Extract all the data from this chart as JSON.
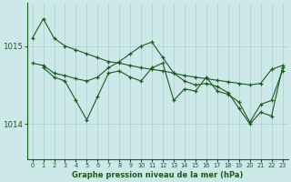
{
  "background_color": "#cce8e8",
  "grid_color": "#aacfcf",
  "line_color": "#1a5c1a",
  "marker_color": "#1a5c1a",
  "title": "Graphe pression niveau de la mer (hPa)",
  "xlim": [
    -0.5,
    23.5
  ],
  "ylim": [
    1013.55,
    1015.55
  ],
  "yticks": [
    1014,
    1015
  ],
  "xticks": [
    0,
    1,
    2,
    3,
    4,
    5,
    6,
    7,
    8,
    9,
    10,
    11,
    12,
    13,
    14,
    15,
    16,
    17,
    18,
    19,
    20,
    21,
    22,
    23
  ],
  "series": [
    {
      "x": [
        0,
        1,
        2,
        3,
        4,
        5,
        6,
        7,
        8,
        9,
        10,
        11,
        12,
        13,
        14,
        15,
        16,
        17,
        18,
        19,
        20,
        21,
        22,
        23
      ],
      "y": [
        1015.1,
        1015.35,
        1015.1,
        1015.0,
        1014.95,
        1014.9,
        1014.85,
        1014.8,
        1014.78,
        1014.75,
        1014.72,
        1014.7,
        1014.68,
        1014.65,
        1014.62,
        1014.6,
        1014.58,
        1014.56,
        1014.54,
        1014.52,
        1014.5,
        1014.52,
        1014.7,
        1014.75
      ]
    },
    {
      "x": [
        0,
        1,
        2,
        3,
        4,
        5,
        6,
        7,
        8,
        9,
        10,
        11,
        12,
        13,
        14,
        15,
        16,
        17,
        18,
        19,
        20,
        21,
        22,
        23
      ],
      "y": [
        1014.78,
        1014.75,
        1014.65,
        1014.62,
        1014.58,
        1014.55,
        1014.6,
        1014.72,
        1014.8,
        1014.9,
        1015.0,
        1015.05,
        1014.85,
        1014.65,
        1014.55,
        1014.5,
        1014.52,
        1014.48,
        1014.4,
        1014.2,
        1014.0,
        1014.15,
        1014.1,
        1014.72
      ]
    },
    {
      "x": [
        1,
        2,
        3,
        4,
        5,
        6,
        7,
        8,
        9,
        10,
        11,
        12,
        13,
        14,
        15,
        16,
        17,
        18,
        19,
        20,
        21,
        22,
        23
      ],
      "y": [
        1014.72,
        1014.6,
        1014.55,
        1014.3,
        1014.05,
        1014.35,
        1014.65,
        1014.68,
        1014.6,
        1014.55,
        1014.72,
        1014.78,
        1014.3,
        1014.45,
        1014.42,
        1014.6,
        1014.42,
        1014.38,
        1014.28,
        1014.02,
        1014.25,
        1014.3,
        1014.68
      ]
    }
  ]
}
